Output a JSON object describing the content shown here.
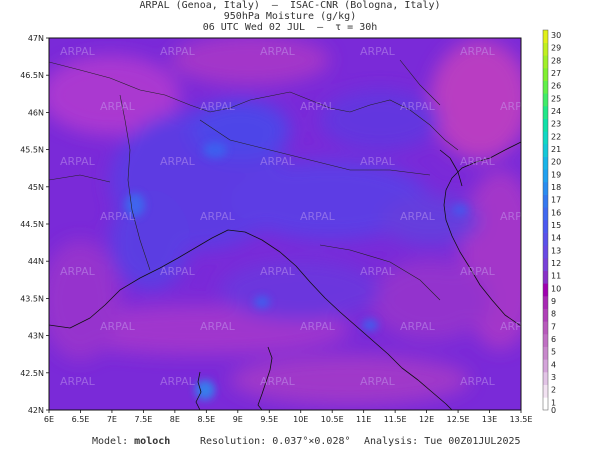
{
  "header": {
    "line1": "ARPAL (Genoa, Italy)  —  ISAC-CNR (Bologna, Italy)",
    "line2": "950hPa Moisture (g/kg)",
    "line3": "06 UTC Wed 02 JUL  —  τ = 30h"
  },
  "watermark": "ARPAL",
  "map": {
    "lat_labels": [
      "47N",
      "46.5N",
      "46N",
      "45.5N",
      "45N",
      "44.5N",
      "44N",
      "43.5N",
      "43N",
      "42.5N",
      "42N"
    ],
    "lon_labels": [
      "6E",
      "6.5E",
      "7E",
      "7.5E",
      "8E",
      "8.5E",
      "9E",
      "9.5E",
      "10E",
      "10.5E",
      "11E",
      "11.5E",
      "12E",
      "12.5E",
      "13E",
      "13.5E"
    ],
    "lat_range": [
      42,
      47
    ],
    "lon_range": [
      6,
      13.5
    ]
  },
  "colorbar": {
    "min": 0,
    "max": 30,
    "labels": [
      "30",
      "29",
      "28",
      "27",
      "26",
      "25",
      "24",
      "23",
      "22",
      "21",
      "20",
      "19",
      "18",
      "17",
      "16",
      "15",
      "14",
      "13",
      "12",
      "11",
      "10",
      "9",
      "8",
      "7",
      "6",
      "5",
      "4",
      "3",
      "2",
      "1",
      "0"
    ],
    "colors": [
      "#ffffff",
      "#f2e2f2",
      "#e2c4e6",
      "#d4a4da",
      "#c888cc",
      "#c070c4",
      "#b85abc",
      "#b040b8",
      "#a828b4",
      "#a000b0",
      "#8830c8",
      "#7840d8",
      "#6848e4",
      "#5a50ea",
      "#4c58f0",
      "#4068f0",
      "#3478f0",
      "#2a8cf0",
      "#20a0f0",
      "#18b4e8",
      "#14c8d8",
      "#10d8c4",
      "#10e0a8",
      "#20e888",
      "#40ec68",
      "#60f048",
      "#80f030",
      "#a0f028",
      "#c0f020",
      "#e0f018"
    ]
  },
  "footer": {
    "model_label": "Model:",
    "model_value": "moloch",
    "resolution": "Resolution: 0.037°×0.028°",
    "analysis": "Analysis: Tue 00Z01JUL2025"
  }
}
